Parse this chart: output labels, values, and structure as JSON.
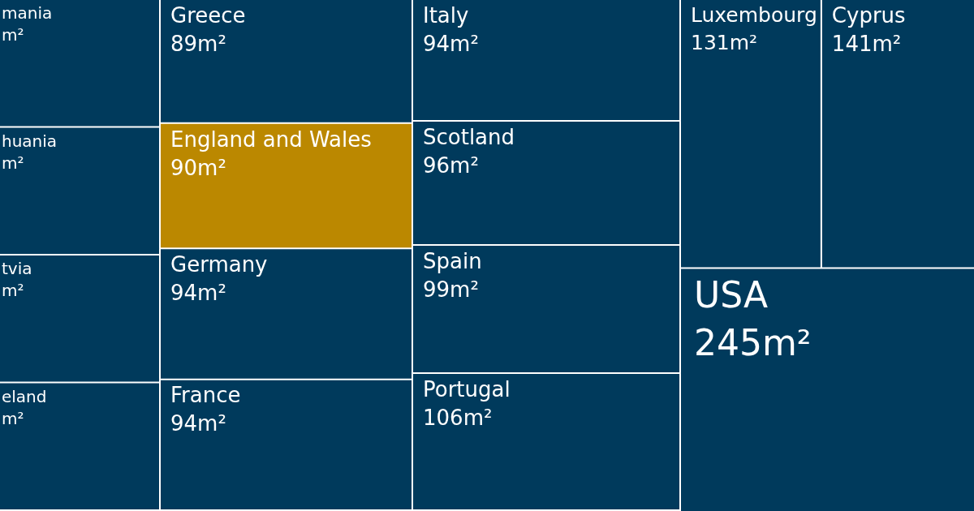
{
  "chart_data": {
    "type": "other",
    "categories": [
      "mania",
      "huania",
      "tvia",
      "eland",
      "Greece",
      "England and Wales",
      "Germany",
      "France",
      "Italy",
      "Scotland",
      "Spain",
      "Portugal",
      "Luxembourg",
      "Cyprus",
      "USA"
    ],
    "values": [
      null,
      null,
      null,
      null,
      89,
      90,
      94,
      94,
      94,
      96,
      99,
      106,
      131,
      141,
      245
    ],
    "value_labels": [
      "m²",
      "m²",
      "m²",
      "m²",
      "89m²",
      "90m²",
      "94m²",
      "94m²",
      "94m²",
      "96m²",
      "99m²",
      "106m²",
      "131m²",
      "141m²",
      "245m²"
    ],
    "colors": [
      "#003a5c",
      "#003a5c",
      "#003a5c",
      "#003a5c",
      "#003a5c",
      "#bb8800",
      "#003a5c",
      "#003a5c",
      "#003a5c",
      "#003a5c",
      "#003a5c",
      "#003a5c",
      "#003a5c",
      "#003a5c",
      "#003a5c"
    ]
  }
}
